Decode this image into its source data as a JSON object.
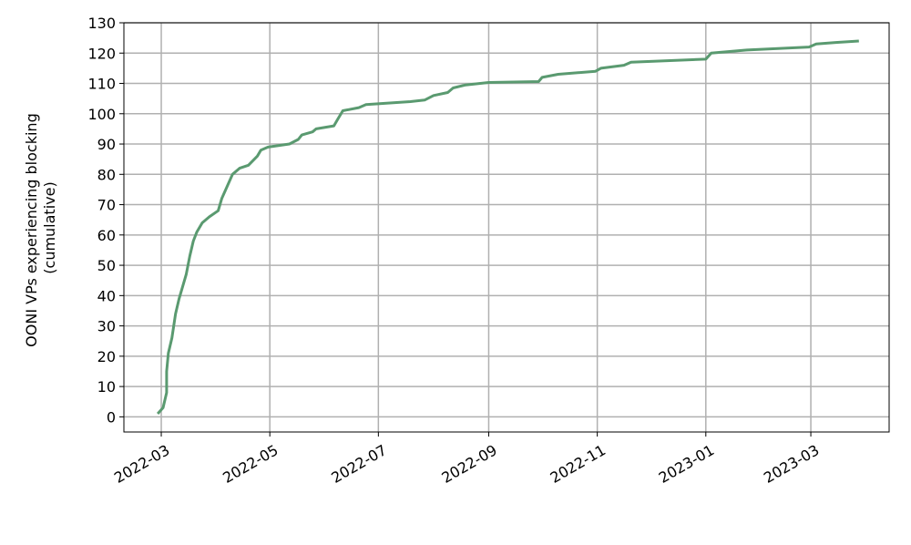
{
  "chart_data": {
    "type": "line",
    "title": "",
    "xlabel": "",
    "ylabel": "OONI VPs experiencing blocking\n(cumulative)",
    "ylabel_lines": [
      "OONI VPs experiencing blocking",
      "(cumulative)"
    ],
    "xlim": [
      "2022-02-08",
      "2023-04-14"
    ],
    "ylim": [
      -5,
      130
    ],
    "x_ticks": [
      "2022-03",
      "2022-05",
      "2022-07",
      "2022-09",
      "2022-11",
      "2023-01",
      "2023-03"
    ],
    "x_tick_dates": [
      "2022-03-01",
      "2022-05-01",
      "2022-07-01",
      "2022-09-01",
      "2022-11-01",
      "2023-01-01",
      "2023-03-01"
    ],
    "y_ticks": [
      0,
      10,
      20,
      30,
      40,
      50,
      60,
      70,
      80,
      90,
      100,
      110,
      120,
      130
    ],
    "grid": true,
    "color": "#5a9a70",
    "series": [
      {
        "x": [
          "2022-02-27",
          "2022-03-02",
          "2022-03-04",
          "2022-03-04",
          "2022-03-05",
          "2022-03-07",
          "2022-03-08",
          "2022-03-09",
          "2022-03-11",
          "2022-03-13",
          "2022-03-15",
          "2022-03-17",
          "2022-03-19",
          "2022-03-21",
          "2022-03-24",
          "2022-03-28",
          "2022-04-02",
          "2022-04-04",
          "2022-04-07",
          "2022-04-10",
          "2022-04-14",
          "2022-04-19",
          "2022-04-24",
          "2022-04-26",
          "2022-04-30",
          "2022-05-12",
          "2022-05-17",
          "2022-05-19",
          "2022-05-25",
          "2022-05-27",
          "2022-06-06",
          "2022-06-08",
          "2022-06-11",
          "2022-06-20",
          "2022-06-24",
          "2022-07-19",
          "2022-07-27",
          "2022-08-01",
          "2022-08-09",
          "2022-08-12",
          "2022-08-19",
          "2022-09-01",
          "2022-09-29",
          "2022-10-01",
          "2022-10-10",
          "2022-10-31",
          "2022-11-03",
          "2022-11-16",
          "2022-11-20",
          "2023-01-01",
          "2023-01-04",
          "2023-01-24",
          "2023-02-28",
          "2023-03-04",
          "2023-03-15",
          "2023-03-28"
        ],
        "y": [
          1,
          3,
          8,
          15,
          21,
          26,
          30,
          34,
          39,
          43,
          47,
          53,
          58,
          61,
          64,
          66,
          68,
          72,
          76,
          80,
          82,
          83,
          86,
          88,
          89,
          90,
          91.5,
          93,
          94,
          95,
          96,
          98,
          101,
          102,
          103,
          104,
          104.5,
          106,
          107,
          108.5,
          109.5,
          110.3,
          110.6,
          112,
          113,
          114,
          115,
          116,
          117,
          118,
          120,
          121,
          122,
          123,
          123.5,
          124
        ]
      }
    ]
  }
}
